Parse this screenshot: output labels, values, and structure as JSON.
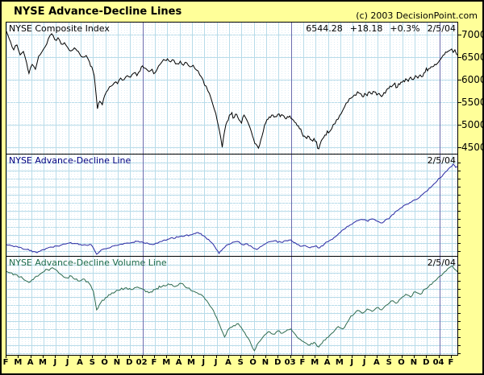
{
  "header": {
    "title": "NYSE Advance-Decline Lines",
    "copyright": "(c) 2003 DecisionPoint.com"
  },
  "colors": {
    "page_background": "#ffff99",
    "panel_background": "#ffffff",
    "grid_major": "#b7dbe9",
    "grid_minor": "#ddeef6",
    "year_line": "#6b6bae",
    "composite_line": "#000000",
    "ad_line": "#2929a3",
    "ad_label": "#000080",
    "adv_line": "#2e6b50",
    "adv_label": "#1d6b4a",
    "text": "#000000"
  },
  "x_axis": {
    "month_labels": [
      "F",
      "M",
      "A",
      "M",
      "J",
      "J",
      "A",
      "S",
      "O",
      "N",
      "D",
      "02",
      "F",
      "M",
      "A",
      "M",
      "J",
      "J",
      "A",
      "S",
      "O",
      "N",
      "D",
      "03",
      "F",
      "M",
      "A",
      "M",
      "J",
      "J",
      "A",
      "S",
      "O",
      "N",
      "D",
      "04",
      "F"
    ],
    "year_line_indices": [
      11,
      23,
      35
    ]
  },
  "panels": {
    "composite": {
      "label": "NYSE Composite Index",
      "quote": {
        "last": "6544.28",
        "change": "+18.18",
        "percent": "+0.3%",
        "date": "2/5/04"
      },
      "y_tick_labels": [
        "7000",
        "6500",
        "6000",
        "5500",
        "5000",
        "4500"
      ]
    },
    "ad": {
      "label": "NYSE Advance-Decline Line",
      "date": "2/5/04"
    },
    "adv": {
      "label": "NYSE Advance-Decline Volume Line",
      "date": "2/5/04"
    }
  },
  "chart_data": [
    {
      "type": "line",
      "title": "NYSE Composite Index",
      "x_unit": "months since Feb 2001 (F ... 04 F)",
      "x_range": [
        0,
        36.5
      ],
      "ylabel": "index value",
      "ylim": [
        4357,
        7268
      ],
      "y_ticks": [
        7000,
        6500,
        6000,
        5500,
        5000,
        4500
      ],
      "last_quote": 6544.28,
      "points": [
        [
          0,
          7070
        ],
        [
          0.33,
          6840
        ],
        [
          0.59,
          6660
        ],
        [
          0.85,
          6770
        ],
        [
          1.11,
          6550
        ],
        [
          1.37,
          6625
        ],
        [
          1.63,
          6375
        ],
        [
          1.82,
          6140
        ],
        [
          2.08,
          6340
        ],
        [
          2.34,
          6230
        ],
        [
          2.6,
          6520
        ],
        [
          2.86,
          6610
        ],
        [
          3.13,
          6730
        ],
        [
          3.39,
          6910
        ],
        [
          3.65,
          7020
        ],
        [
          3.91,
          6890
        ],
        [
          4.17,
          6930
        ],
        [
          4.43,
          6790
        ],
        [
          4.69,
          6820
        ],
        [
          4.95,
          6715
        ],
        [
          5.27,
          6645
        ],
        [
          5.6,
          6680
        ],
        [
          5.92,
          6570
        ],
        [
          6.18,
          6500
        ],
        [
          6.45,
          6535
        ],
        [
          6.71,
          6395
        ],
        [
          6.9,
          6285
        ],
        [
          7.1,
          6090
        ],
        [
          7.23,
          5730
        ],
        [
          7.36,
          5355
        ],
        [
          7.55,
          5520
        ],
        [
          7.75,
          5445
        ],
        [
          7.94,
          5645
        ],
        [
          8.2,
          5770
        ],
        [
          8.46,
          5855
        ],
        [
          8.72,
          5930
        ],
        [
          8.98,
          5910
        ],
        [
          9.24,
          6035
        ],
        [
          9.51,
          6000
        ],
        [
          9.77,
          6090
        ],
        [
          10.03,
          6055
        ],
        [
          10.29,
          6145
        ],
        [
          10.55,
          6090
        ],
        [
          10.81,
          6195
        ],
        [
          11,
          6305
        ],
        [
          11.26,
          6250
        ],
        [
          11.52,
          6180
        ],
        [
          11.78,
          6230
        ],
        [
          12.04,
          6160
        ],
        [
          12.3,
          6305
        ],
        [
          12.57,
          6395
        ],
        [
          12.83,
          6430
        ],
        [
          13.02,
          6465
        ],
        [
          13.28,
          6395
        ],
        [
          13.54,
          6430
        ],
        [
          13.8,
          6355
        ],
        [
          14.06,
          6410
        ],
        [
          14.32,
          6320
        ],
        [
          14.58,
          6375
        ],
        [
          14.84,
          6285
        ],
        [
          15.1,
          6320
        ],
        [
          15.36,
          6215
        ],
        [
          15.63,
          6105
        ],
        [
          15.89,
          6000
        ],
        [
          16.15,
          5855
        ],
        [
          16.41,
          5695
        ],
        [
          16.67,
          5465
        ],
        [
          16.93,
          5250
        ],
        [
          17.12,
          5000
        ],
        [
          17.32,
          4730
        ],
        [
          17.45,
          4500
        ],
        [
          17.64,
          4855
        ],
        [
          17.84,
          5070
        ],
        [
          18.03,
          5215
        ],
        [
          18.23,
          5270
        ],
        [
          18.42,
          5160
        ],
        [
          18.62,
          5230
        ],
        [
          18.81,
          5105
        ],
        [
          19.01,
          5035
        ],
        [
          19.21,
          5215
        ],
        [
          19.4,
          5125
        ],
        [
          19.6,
          5000
        ],
        [
          19.79,
          4855
        ],
        [
          19.99,
          4680
        ],
        [
          20.18,
          4570
        ],
        [
          20.38,
          4480
        ],
        [
          20.57,
          4660
        ],
        [
          20.77,
          4855
        ],
        [
          20.96,
          5035
        ],
        [
          21.16,
          5125
        ],
        [
          21.35,
          5160
        ],
        [
          21.55,
          5215
        ],
        [
          21.74,
          5180
        ],
        [
          21.94,
          5230
        ],
        [
          22.14,
          5180
        ],
        [
          22.33,
          5215
        ],
        [
          22.53,
          5145
        ],
        [
          22.72,
          5180
        ],
        [
          22.92,
          5195
        ],
        [
          23.11,
          5125
        ],
        [
          23.31,
          5055
        ],
        [
          23.5,
          4980
        ],
        [
          23.7,
          4910
        ],
        [
          23.89,
          4820
        ],
        [
          24.09,
          4750
        ],
        [
          24.28,
          4695
        ],
        [
          24.48,
          4730
        ],
        [
          24.67,
          4660
        ],
        [
          24.87,
          4695
        ],
        [
          25.07,
          4625
        ],
        [
          25.26,
          4465
        ],
        [
          25.46,
          4645
        ],
        [
          25.65,
          4715
        ],
        [
          25.85,
          4770
        ],
        [
          26.04,
          4820
        ],
        [
          26.3,
          4910
        ],
        [
          26.56,
          5020
        ],
        [
          26.82,
          5125
        ],
        [
          27.08,
          5250
        ],
        [
          27.34,
          5395
        ],
        [
          27.6,
          5500
        ],
        [
          27.86,
          5590
        ],
        [
          28.13,
          5660
        ],
        [
          28.39,
          5730
        ],
        [
          28.58,
          5695
        ],
        [
          28.78,
          5625
        ],
        [
          28.97,
          5695
        ],
        [
          29.17,
          5645
        ],
        [
          29.36,
          5730
        ],
        [
          29.56,
          5680
        ],
        [
          29.75,
          5730
        ],
        [
          29.95,
          5660
        ],
        [
          30.14,
          5695
        ],
        [
          30.34,
          5625
        ],
        [
          30.53,
          5715
        ],
        [
          30.73,
          5770
        ],
        [
          30.92,
          5805
        ],
        [
          31.12,
          5840
        ],
        [
          31.32,
          5895
        ],
        [
          31.51,
          5820
        ],
        [
          31.71,
          5910
        ],
        [
          31.9,
          5945
        ],
        [
          32.1,
          5980
        ],
        [
          32.29,
          6020
        ],
        [
          32.49,
          5965
        ],
        [
          32.68,
          6055
        ],
        [
          32.88,
          6000
        ],
        [
          33.07,
          6090
        ],
        [
          33.27,
          6035
        ],
        [
          33.46,
          6105
        ],
        [
          33.66,
          6070
        ],
        [
          33.85,
          6160
        ],
        [
          34.05,
          6195
        ],
        [
          34.24,
          6250
        ],
        [
          34.44,
          6285
        ],
        [
          34.64,
          6340
        ],
        [
          34.83,
          6355
        ],
        [
          35.03,
          6430
        ],
        [
          35.22,
          6500
        ],
        [
          35.42,
          6555
        ],
        [
          35.61,
          6605
        ],
        [
          35.81,
          6645
        ],
        [
          36,
          6680
        ],
        [
          36.13,
          6605
        ],
        [
          36.26,
          6660
        ],
        [
          36.39,
          6570
        ],
        [
          36.46,
          6544
        ]
      ]
    },
    {
      "type": "line",
      "title": "NYSE Advance-Decline Line",
      "x_unit": "months since Feb 2001 (F ... 04 F)",
      "x_range": [
        0,
        36.5
      ],
      "ylabel": "cumulative breadth (unlabeled axis, 0-100 of panel height)",
      "ylim": [
        0,
        100
      ],
      "points": [
        [
          0,
          10.8
        ],
        [
          0.98,
          8
        ],
        [
          1.63,
          5.8
        ],
        [
          2.47,
          2.5
        ],
        [
          3.58,
          8.3
        ],
        [
          4.36,
          10
        ],
        [
          5.08,
          12.5
        ],
        [
          5.86,
          10.8
        ],
        [
          6.84,
          10.8
        ],
        [
          7.29,
          0.8
        ],
        [
          7.75,
          5.8
        ],
        [
          8.79,
          10
        ],
        [
          9.77,
          12.5
        ],
        [
          10.55,
          14.2
        ],
        [
          11.13,
          12.5
        ],
        [
          11.85,
          10.8
        ],
        [
          12.57,
          14.2
        ],
        [
          13.15,
          16.7
        ],
        [
          14,
          19.2
        ],
        [
          14.84,
          20.8
        ],
        [
          15.49,
          23.3
        ],
        [
          15.95,
          20
        ],
        [
          16.47,
          14.2
        ],
        [
          16.86,
          8.3
        ],
        [
          17.19,
          1.7
        ],
        [
          17.51,
          6.7
        ],
        [
          17.9,
          10.8
        ],
        [
          18.29,
          13.3
        ],
        [
          18.68,
          14.2
        ],
        [
          19.08,
          10.8
        ],
        [
          19.47,
          11.7
        ],
        [
          19.86,
          8.3
        ],
        [
          20.25,
          5.8
        ],
        [
          20.64,
          9.2
        ],
        [
          21.03,
          12.5
        ],
        [
          21.42,
          14.2
        ],
        [
          21.81,
          15
        ],
        [
          22.2,
          13.3
        ],
        [
          22.59,
          15
        ],
        [
          22.98,
          15.8
        ],
        [
          23.37,
          12.5
        ],
        [
          23.76,
          9.2
        ],
        [
          24.15,
          10
        ],
        [
          24.54,
          7.5
        ],
        [
          24.93,
          9.2
        ],
        [
          25.33,
          7.5
        ],
        [
          25.72,
          11.7
        ],
        [
          26.11,
          15
        ],
        [
          26.5,
          18.3
        ],
        [
          26.89,
          22.5
        ],
        [
          27.28,
          26.7
        ],
        [
          27.67,
          30
        ],
        [
          28.06,
          33.3
        ],
        [
          28.45,
          35.8
        ],
        [
          28.84,
          36.7
        ],
        [
          29.23,
          35
        ],
        [
          29.62,
          37.5
        ],
        [
          30.01,
          35
        ],
        [
          30.4,
          33.3
        ],
        [
          30.79,
          37.5
        ],
        [
          31.18,
          41.7
        ],
        [
          31.58,
          45.8
        ],
        [
          31.97,
          49.2
        ],
        [
          32.36,
          52.5
        ],
        [
          32.75,
          55
        ],
        [
          33.14,
          57.5
        ],
        [
          33.53,
          61.7
        ],
        [
          33.92,
          65.8
        ],
        [
          34.31,
          70
        ],
        [
          34.7,
          75
        ],
        [
          35.09,
          80
        ],
        [
          35.48,
          85.8
        ],
        [
          35.87,
          90.8
        ],
        [
          36.13,
          94.2
        ],
        [
          36.33,
          90.8
        ],
        [
          36.46,
          91.7
        ]
      ]
    },
    {
      "type": "line",
      "title": "NYSE Advance-Decline Volume Line",
      "x_unit": "months since Feb 2001 (F ... 04 F)",
      "x_range": [
        0,
        36.5
      ],
      "ylabel": "cumulative volume breadth (unlabeled axis, 0-100 of panel height)",
      "ylim": [
        0,
        100
      ],
      "points": [
        [
          0,
          87
        ],
        [
          0.65,
          84
        ],
        [
          1.3,
          80
        ],
        [
          1.82,
          75.5
        ],
        [
          2.28,
          80.5
        ],
        [
          2.8,
          85
        ],
        [
          3.32,
          89
        ],
        [
          3.71,
          91
        ],
        [
          4.23,
          85.5
        ],
        [
          4.75,
          80.5
        ],
        [
          5.27,
          82
        ],
        [
          5.79,
          77
        ],
        [
          6.31,
          79
        ],
        [
          6.71,
          74
        ],
        [
          7.03,
          66
        ],
        [
          7.29,
          46.5
        ],
        [
          7.62,
          54
        ],
        [
          8.01,
          59.5
        ],
        [
          8.53,
          64.5
        ],
        [
          9.05,
          67
        ],
        [
          9.57,
          69.5
        ],
        [
          10.09,
          68
        ],
        [
          10.61,
          70.5
        ],
        [
          11,
          68.5
        ],
        [
          11.52,
          64.5
        ],
        [
          12.04,
          68
        ],
        [
          12.57,
          71
        ],
        [
          13.09,
          74
        ],
        [
          13.61,
          71
        ],
        [
          14.13,
          74.5
        ],
        [
          14.65,
          69.5
        ],
        [
          15.17,
          66
        ],
        [
          15.69,
          63
        ],
        [
          16.21,
          56
        ],
        [
          16.73,
          46
        ],
        [
          17.25,
          30.5
        ],
        [
          17.64,
          18
        ],
        [
          17.97,
          26.5
        ],
        [
          18.36,
          30
        ],
        [
          18.75,
          32
        ],
        [
          19.14,
          24.5
        ],
        [
          19.53,
          17
        ],
        [
          19.79,
          10
        ],
        [
          20.05,
          3.5
        ],
        [
          20.38,
          12
        ],
        [
          20.77,
          18.5
        ],
        [
          21.16,
          23.5
        ],
        [
          21.55,
          21
        ],
        [
          21.94,
          24.5
        ],
        [
          22.33,
          22
        ],
        [
          22.72,
          25.5
        ],
        [
          22.98,
          26.5
        ],
        [
          23.37,
          20.5
        ],
        [
          23.76,
          15.5
        ],
        [
          24.15,
          12
        ],
        [
          24.54,
          9.5
        ],
        [
          24.87,
          12.5
        ],
        [
          25.26,
          7.5
        ],
        [
          25.65,
          14.5
        ],
        [
          26.04,
          18
        ],
        [
          26.43,
          23
        ],
        [
          26.82,
          29
        ],
        [
          27.21,
          26.5
        ],
        [
          27.6,
          34
        ],
        [
          27.99,
          40.5
        ],
        [
          28.39,
          46
        ],
        [
          28.78,
          43
        ],
        [
          29.17,
          47.5
        ],
        [
          29.56,
          45
        ],
        [
          29.95,
          49
        ],
        [
          30.34,
          46.5
        ],
        [
          30.73,
          51.5
        ],
        [
          31.12,
          56
        ],
        [
          31.51,
          53.5
        ],
        [
          31.9,
          58.5
        ],
        [
          32.29,
          63
        ],
        [
          32.68,
          60
        ],
        [
          33.07,
          65.5
        ],
        [
          33.46,
          63
        ],
        [
          33.85,
          68.5
        ],
        [
          34.24,
          73
        ],
        [
          34.64,
          77
        ],
        [
          35.03,
          82
        ],
        [
          35.42,
          86.5
        ],
        [
          35.81,
          91
        ],
        [
          36.07,
          93
        ],
        [
          36.26,
          89
        ],
        [
          36.46,
          86.5
        ]
      ]
    }
  ]
}
